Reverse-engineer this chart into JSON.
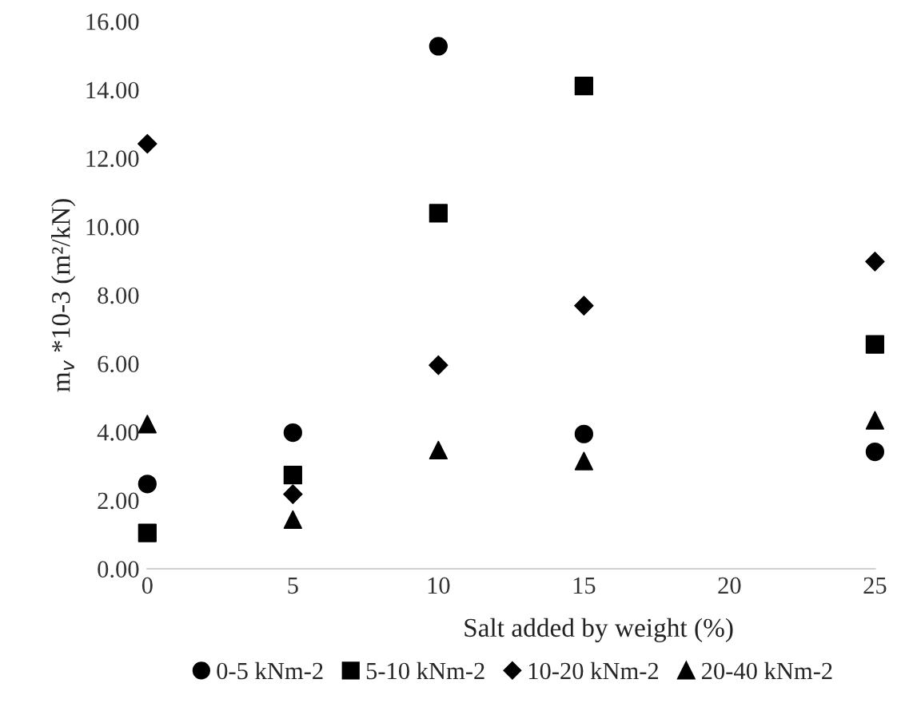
{
  "chart_data": {
    "type": "scatter",
    "xlabel": "Salt added by weight (%)",
    "ylabel": "m$_{v}$ *10-3 (m²/kN)",
    "x": [
      0,
      5,
      10,
      15,
      25
    ],
    "series": [
      {
        "name": "0-5 kNm-2",
        "color": "#000000",
        "marker": "circle",
        "values": [
          2.48,
          3.98,
          15.27,
          3.94,
          3.42
        ]
      },
      {
        "name": "5-10 kNm-2",
        "color": "#000000",
        "marker": "square",
        "values": [
          1.05,
          2.74,
          10.39,
          14.11,
          6.56
        ]
      },
      {
        "name": "10-20 kNm-2",
        "color": "#000000",
        "marker": "diamond",
        "values": [
          12.42,
          2.18,
          5.95,
          7.69,
          8.98
        ]
      },
      {
        "name": "20-40 kNm-2",
        "color": "#000000",
        "marker": "triangle",
        "values": [
          4.23,
          1.44,
          3.47,
          3.15,
          4.34
        ]
      }
    ],
    "xlim": [
      0,
      25
    ],
    "xticks": [
      0,
      5,
      10,
      15,
      20,
      25
    ],
    "ylim": [
      0,
      16
    ],
    "yticks": [
      {
        "value": 0,
        "label": "0.00"
      },
      {
        "value": 2,
        "label": "2.00"
      },
      {
        "value": 4,
        "label": "4.00"
      },
      {
        "value": 6,
        "label": "6.00"
      },
      {
        "value": 8,
        "label": "8.00"
      },
      {
        "value": 10,
        "label": "10.00"
      },
      {
        "value": 12,
        "label": "12.00"
      },
      {
        "value": 14,
        "label": "14.00"
      },
      {
        "value": 16,
        "label": "16.00"
      }
    ],
    "grid": false,
    "legend": "bottom"
  }
}
